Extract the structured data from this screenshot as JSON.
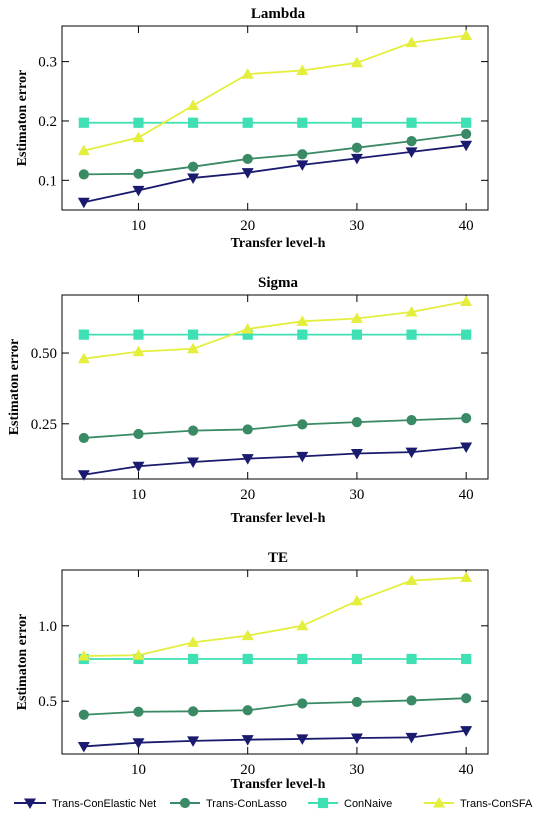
{
  "chart_data": [
    {
      "type": "line",
      "title": "Lambda",
      "xlabel": "Transfer level-h",
      "ylabel": "Estimaton error",
      "x": [
        5,
        10,
        15,
        20,
        25,
        30,
        35,
        40
      ],
      "xlim": [
        3,
        42
      ],
      "ylim": [
        0.05,
        0.36
      ],
      "xticks": [
        10,
        20,
        30,
        40
      ],
      "yticks": [
        0.1,
        0.2,
        0.3
      ],
      "ytick_labels": [
        "0.1",
        "0.2",
        "0.3"
      ],
      "series": [
        {
          "name": "Trans-ConElastic Net",
          "values": [
            0.063,
            0.083,
            0.104,
            0.113,
            0.126,
            0.137,
            0.148,
            0.159
          ]
        },
        {
          "name": "Trans-ConLasso",
          "values": [
            0.11,
            0.111,
            0.123,
            0.136,
            0.144,
            0.155,
            0.166,
            0.178
          ]
        },
        {
          "name": "ConNaive",
          "values": [
            0.197,
            0.197,
            0.197,
            0.197,
            0.197,
            0.197,
            0.197,
            0.197
          ]
        },
        {
          "name": "Trans-ConSFA",
          "values": [
            0.15,
            0.172,
            0.226,
            0.279,
            0.285,
            0.298,
            0.332,
            0.344
          ]
        }
      ]
    },
    {
      "type": "line",
      "title": "Sigma",
      "xlabel": "Transfer level-h",
      "ylabel": "Estimaton error",
      "x": [
        5,
        10,
        15,
        20,
        25,
        30,
        35,
        40
      ],
      "xlim": [
        3,
        42
      ],
      "ylim": [
        0.055,
        0.705
      ],
      "xticks": [
        10,
        20,
        30,
        40
      ],
      "yticks": [
        0.25,
        0.5
      ],
      "ytick_labels": [
        "0.25",
        "0.50"
      ],
      "series": [
        {
          "name": "Trans-ConElastic Net",
          "values": [
            0.07,
            0.1,
            0.115,
            0.127,
            0.135,
            0.145,
            0.15,
            0.168
          ]
        },
        {
          "name": "Trans-ConLasso",
          "values": [
            0.2,
            0.214,
            0.226,
            0.23,
            0.248,
            0.256,
            0.263,
            0.27
          ]
        },
        {
          "name": "ConNaive",
          "values": [
            0.565,
            0.565,
            0.565,
            0.565,
            0.565,
            0.565,
            0.565,
            0.565
          ]
        },
        {
          "name": "Trans-ConSFA",
          "values": [
            0.48,
            0.505,
            0.515,
            0.585,
            0.612,
            0.622,
            0.645,
            0.682
          ]
        }
      ]
    },
    {
      "type": "line",
      "title": "TE",
      "xlabel": "Transfer level-h",
      "ylabel": "Estimaton error",
      "x": [
        5,
        10,
        15,
        20,
        25,
        30,
        35,
        40
      ],
      "xlim": [
        3,
        42
      ],
      "ylim": [
        0.15,
        1.37
      ],
      "xticks": [
        10,
        20,
        30,
        40
      ],
      "yticks": [
        0.5,
        1.0
      ],
      "ytick_labels": [
        "0.5",
        "1.0"
      ],
      "series": [
        {
          "name": "Trans-ConElastic Net",
          "values": [
            0.2,
            0.225,
            0.237,
            0.245,
            0.25,
            0.256,
            0.26,
            0.305
          ]
        },
        {
          "name": "Trans-ConLasso",
          "values": [
            0.41,
            0.43,
            0.433,
            0.44,
            0.485,
            0.495,
            0.505,
            0.52
          ]
        },
        {
          "name": "ConNaive",
          "values": [
            0.78,
            0.78,
            0.78,
            0.78,
            0.78,
            0.78,
            0.78,
            0.78
          ]
        },
        {
          "name": "Trans-ConSFA",
          "values": [
            0.8,
            0.805,
            0.89,
            0.935,
            1.0,
            1.165,
            1.3,
            1.32
          ]
        }
      ]
    }
  ],
  "legend": {
    "placement": "bottom",
    "entries": [
      {
        "label": "Trans-ConElastic Net",
        "color": "#1a1a6e",
        "marker": "triangle-down"
      },
      {
        "label": "Trans-ConLasso",
        "color": "#3a8a66",
        "marker": "circle"
      },
      {
        "label": "ConNaive",
        "color": "#3ee0b4",
        "marker": "square"
      },
      {
        "label": "Trans-ConSFA",
        "color": "#e4ee3c",
        "marker": "triangle-up"
      }
    ]
  }
}
